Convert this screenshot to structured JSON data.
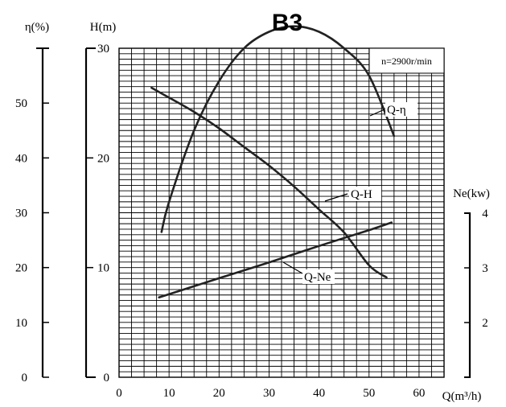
{
  "chart_data": {
    "type": "line",
    "title": "B3",
    "speed_label": "n=2900r/min",
    "xlabel": "Q(m³/h)",
    "x_ticks": [
      "0",
      "10",
      "20",
      "30",
      "40",
      "50",
      "60"
    ],
    "xlim": [
      0,
      65
    ],
    "axes": {
      "eta": {
        "label": "η(%)",
        "ticks": [
          "0",
          "10",
          "20",
          "30",
          "40",
          "50"
        ],
        "range": [
          0,
          60
        ]
      },
      "head": {
        "label": "H(m)",
        "ticks": [
          "0",
          "10",
          "20",
          "30"
        ],
        "range": [
          0,
          30
        ]
      },
      "power": {
        "label": "Ne(kw)",
        "ticks": [
          "2",
          "3",
          "4"
        ],
        "range": [
          1,
          4
        ]
      }
    },
    "grid": true,
    "series": [
      {
        "name": "Q-H",
        "axis": "head",
        "x": [
          6.5,
          10,
          15,
          20,
          25,
          30,
          35,
          40,
          45,
          50,
          53.5
        ],
        "y": [
          26.4,
          25.5,
          24.2,
          22.7,
          21.0,
          19.3,
          17.4,
          15.3,
          13.2,
          10.2,
          9.1
        ]
      },
      {
        "name": "Q-η",
        "axis": "eta",
        "x": [
          8.5,
          10,
          15,
          20,
          25,
          30,
          35,
          40,
          45,
          50,
          55
        ],
        "y": [
          26.5,
          32,
          45,
          54,
          60,
          63,
          64,
          63,
          60,
          55,
          44
        ]
      },
      {
        "name": "Q-Ne",
        "axis": "power",
        "x": [
          8,
          20,
          30,
          40,
          50,
          54.5
        ],
        "y": [
          2.46,
          2.81,
          3.1,
          3.4,
          3.69,
          3.83
        ]
      }
    ]
  }
}
